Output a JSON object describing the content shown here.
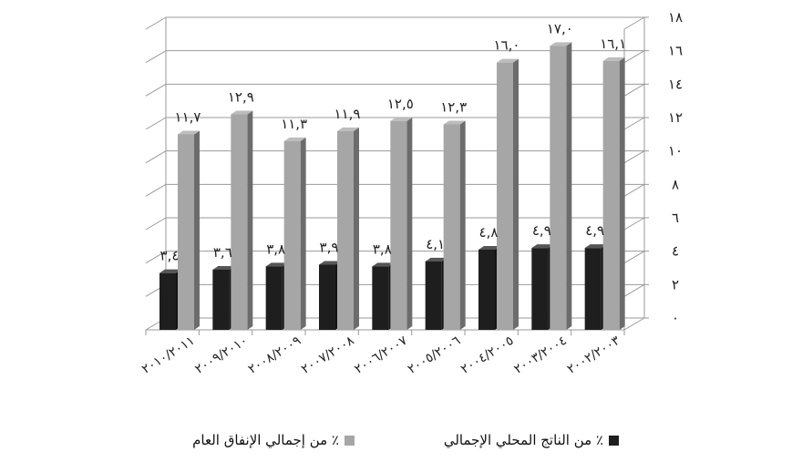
{
  "chart_data": {
    "type": "bar",
    "categories": [
      "٢٠١٠/٢٠١١",
      "٢٠٠٩/٢٠١٠",
      "٢٠٠٨/٢٠٠٩",
      "٢٠٠٧/٢٠٠٨",
      "٢٠٠٦/٢٠٠٧",
      "٢٠٠٥/٢٠٠٦",
      "٢٠٠٤/٢٠٠٥",
      "٢٠٠٣/٢٠٠٤",
      "٢٠٠٢/٢٠٠٣"
    ],
    "series": [
      {
        "name": "٪ من الناتج المحلي الإجمالي",
        "color": "#1e1e1e",
        "values": [
          3.4,
          3.6,
          3.8,
          3.9,
          3.8,
          4.1,
          4.8,
          4.9,
          4.9
        ],
        "labels": [
          "٣,٤",
          "٣,٦",
          "٣,٨",
          "٣,٩",
          "٣,٨",
          "٤,١",
          "٤,٨",
          "٤,٩",
          "٤,٩"
        ]
      },
      {
        "name": "٪ من إجمالي الإنفاق العام",
        "color": "#a6a6a6",
        "values": [
          11.7,
          12.9,
          11.3,
          11.9,
          12.5,
          12.3,
          16.0,
          17.0,
          16.1
        ],
        "labels": [
          "١١,٧",
          "١٢,٩",
          "١١,٣",
          "١١,٩",
          "١٢,٥",
          "١٢,٣",
          "١٦,٠",
          "١٧,٠",
          "١٦,١"
        ]
      }
    ],
    "y_ticks": [
      0,
      2,
      4,
      6,
      8,
      10,
      12,
      14,
      16,
      18
    ],
    "y_tick_labels": [
      "٠",
      "٢",
      "٤",
      "٦",
      "٨",
      "١٠",
      "١٢",
      "١٤",
      "١٦",
      "١٨"
    ],
    "ylim": [
      0,
      18
    ],
    "y_axis_side": "right",
    "grid": true,
    "legend_position": "bottom"
  }
}
